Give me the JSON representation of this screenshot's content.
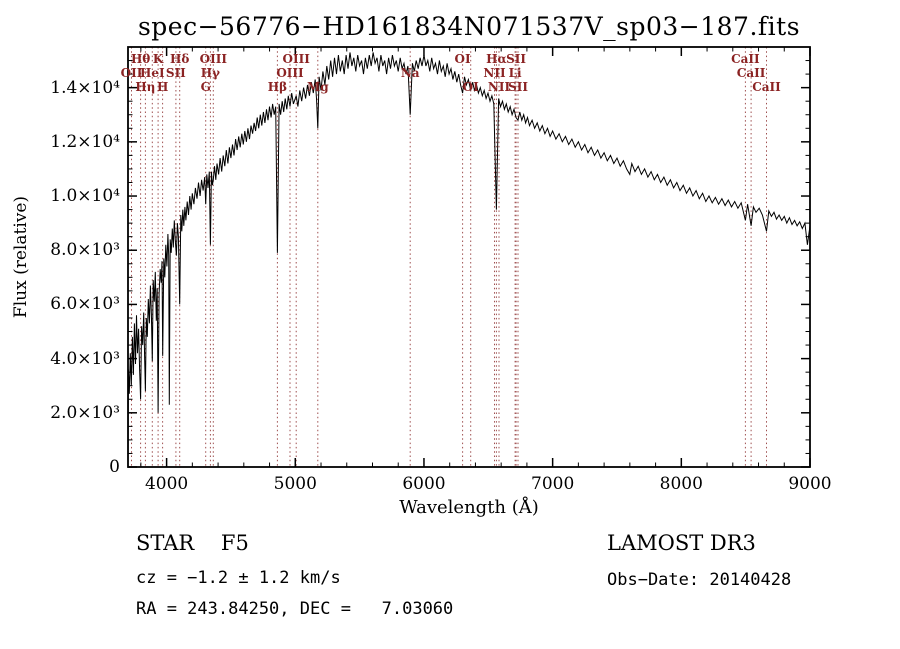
{
  "title": "spec−56776−HD161834N071537V_sp03−187.fits",
  "annotations": {
    "class_label": "STAR    F5",
    "cz": "cz = −1.2 ± 1.2 km/s",
    "radec": "RA = 243.84250, DEC =   7.03060",
    "survey": "LAMOST DR3",
    "obs_date": "Obs−Date: 20140428"
  },
  "chart_data": {
    "type": "line",
    "title": "spec−56776−HD161834N071537V_sp03−187.fits",
    "xlabel": "Wavelength (Å)",
    "ylabel": "Flux (relative)",
    "xlim": [
      3700,
      9000
    ],
    "ylim": [
      0,
      15500
    ],
    "grid": false,
    "legend": "none",
    "line_color": "#000000",
    "marker_color": "#9e4f4f",
    "label_color": "#8b2323",
    "xticks": [
      4000,
      5000,
      6000,
      7000,
      8000,
      9000
    ],
    "xtick_labels": [
      "4000",
      "5000",
      "6000",
      "7000",
      "8000",
      "9000"
    ],
    "yticks": [
      0,
      2000,
      4000,
      6000,
      8000,
      10000,
      12000,
      14000
    ],
    "ytick_labels": [
      "0",
      "2.0×10³",
      "4.0×10³",
      "6.0×10³",
      "8.0×10³",
      "1.0×10⁴",
      "1.2×10⁴",
      "1.4×10⁴"
    ],
    "spectral_lines": [
      {
        "label": "Hθ",
        "wl": 3798,
        "row": 1
      },
      {
        "label": "K",
        "wl": 3934,
        "row": 1
      },
      {
        "label": "Hδ",
        "wl": 4102,
        "row": 1
      },
      {
        "label": "OIII",
        "wl": 4363,
        "row": 1
      },
      {
        "label": "OIII",
        "wl": 5007,
        "row": 1
      },
      {
        "label": "OI",
        "wl": 6300,
        "row": 1
      },
      {
        "label": "Hα",
        "wl": 6563,
        "row": 1
      },
      {
        "label": "SII",
        "wl": 6716,
        "row": 1
      },
      {
        "label": "CaII",
        "wl": 8498,
        "row": 1
      },
      {
        "label": "OII",
        "wl": 3727,
        "row": 2
      },
      {
        "label": "HeI",
        "wl": 3889,
        "row": 2
      },
      {
        "label": "SII",
        "wl": 4072,
        "row": 2
      },
      {
        "label": "Hγ",
        "wl": 4340,
        "row": 2
      },
      {
        "label": "OIII",
        "wl": 4959,
        "row": 2
      },
      {
        "label": "Na",
        "wl": 5893,
        "row": 2
      },
      {
        "label": "NII",
        "wl": 6548,
        "row": 2
      },
      {
        "label": "Li",
        "wl": 6708,
        "row": 2
      },
      {
        "label": "CaII",
        "wl": 8542,
        "row": 2
      },
      {
        "label": "Hη",
        "wl": 3835,
        "row": 3
      },
      {
        "label": "H",
        "wl": 3969,
        "row": 3
      },
      {
        "label": "G",
        "wl": 4304,
        "row": 3
      },
      {
        "label": "Hβ",
        "wl": 4861,
        "row": 3
      },
      {
        "label": "Mg",
        "wl": 5175,
        "row": 3
      },
      {
        "label": "OI",
        "wl": 6363,
        "row": 3
      },
      {
        "label": "NII",
        "wl": 6583,
        "row": 3
      },
      {
        "label": "SII",
        "wl": 6731,
        "row": 3
      },
      {
        "label": "CaII",
        "wl": 8662,
        "row": 3
      }
    ],
    "points": [
      [
        3700,
        100
      ],
      [
        3703,
        3600
      ],
      [
        3710,
        2700
      ],
      [
        3718,
        4200
      ],
      [
        3726,
        3000
      ],
      [
        3734,
        4800
      ],
      [
        3742,
        3400
      ],
      [
        3750,
        5300
      ],
      [
        3758,
        3800
      ],
      [
        3766,
        5600
      ],
      [
        3774,
        4200
      ],
      [
        3782,
        5100
      ],
      [
        3790,
        3600
      ],
      [
        3798,
        2500
      ],
      [
        3806,
        5200
      ],
      [
        3814,
        4500
      ],
      [
        3822,
        5700
      ],
      [
        3830,
        3900
      ],
      [
        3835,
        2800
      ],
      [
        3842,
        5500
      ],
      [
        3850,
        4800
      ],
      [
        3858,
        6200
      ],
      [
        3866,
        5300
      ],
      [
        3874,
        6700
      ],
      [
        3882,
        5600
      ],
      [
        3889,
        3900
      ],
      [
        3896,
        6900
      ],
      [
        3904,
        6100
      ],
      [
        3912,
        7200
      ],
      [
        3920,
        5400
      ],
      [
        3927,
        6600
      ],
      [
        3934,
        2000
      ],
      [
        3942,
        6400
      ],
      [
        3950,
        7300
      ],
      [
        3958,
        6800
      ],
      [
        3964,
        7600
      ],
      [
        3970,
        4100
      ],
      [
        3978,
        7700
      ],
      [
        3986,
        7000
      ],
      [
        3994,
        8200
      ],
      [
        4002,
        7400
      ],
      [
        4010,
        8600
      ],
      [
        4016,
        7800
      ],
      [
        4021,
        2300
      ],
      [
        4028,
        8400
      ],
      [
        4036,
        7900
      ],
      [
        4044,
        8800
      ],
      [
        4052,
        8100
      ],
      [
        4060,
        9100
      ],
      [
        4068,
        8300
      ],
      [
        4076,
        7800
      ],
      [
        4084,
        9000
      ],
      [
        4092,
        8500
      ],
      [
        4102,
        6000
      ],
      [
        4110,
        9300
      ],
      [
        4118,
        8700
      ],
      [
        4126,
        9500
      ],
      [
        4134,
        8900
      ],
      [
        4142,
        9600
      ],
      [
        4150,
        9100
      ],
      [
        4160,
        9800
      ],
      [
        4170,
        9300
      ],
      [
        4180,
        10000
      ],
      [
        4190,
        9500
      ],
      [
        4200,
        10100
      ],
      [
        4212,
        9700
      ],
      [
        4224,
        10300
      ],
      [
        4236,
        9900
      ],
      [
        4248,
        10500
      ],
      [
        4260,
        10000
      ],
      [
        4272,
        10600
      ],
      [
        4284,
        10200
      ],
      [
        4296,
        10700
      ],
      [
        4304,
        9700
      ],
      [
        4312,
        10800
      ],
      [
        4322,
        10300
      ],
      [
        4332,
        10900
      ],
      [
        4340,
        8200
      ],
      [
        4348,
        10900
      ],
      [
        4356,
        10400
      ],
      [
        4363,
        10600
      ],
      [
        4372,
        11100
      ],
      [
        4382,
        10600
      ],
      [
        4392,
        11200
      ],
      [
        4404,
        10800
      ],
      [
        4416,
        11400
      ],
      [
        4428,
        10900
      ],
      [
        4440,
        11500
      ],
      [
        4452,
        11100
      ],
      [
        4464,
        11700
      ],
      [
        4476,
        11200
      ],
      [
        4488,
        11800
      ],
      [
        4500,
        11400
      ],
      [
        4512,
        11900
      ],
      [
        4524,
        11500
      ],
      [
        4536,
        12100
      ],
      [
        4548,
        11700
      ],
      [
        4560,
        12200
      ],
      [
        4572,
        11800
      ],
      [
        4584,
        12300
      ],
      [
        4596,
        11900
      ],
      [
        4608,
        12400
      ],
      [
        4620,
        12000
      ],
      [
        4632,
        12500
      ],
      [
        4644,
        12100
      ],
      [
        4656,
        12600
      ],
      [
        4668,
        12300
      ],
      [
        4680,
        12700
      ],
      [
        4692,
        12400
      ],
      [
        4704,
        12900
      ],
      [
        4716,
        12500
      ],
      [
        4728,
        13000
      ],
      [
        4740,
        12600
      ],
      [
        4752,
        13100
      ],
      [
        4764,
        12700
      ],
      [
        4776,
        13200
      ],
      [
        4788,
        12800
      ],
      [
        4800,
        13300
      ],
      [
        4812,
        12900
      ],
      [
        4824,
        13400
      ],
      [
        4836,
        13000
      ],
      [
        4848,
        13300
      ],
      [
        4861,
        7900
      ],
      [
        4874,
        13400
      ],
      [
        4886,
        13000
      ],
      [
        4898,
        13500
      ],
      [
        4910,
        13100
      ],
      [
        4922,
        13600
      ],
      [
        4934,
        13200
      ],
      [
        4946,
        13700
      ],
      [
        4959,
        13300
      ],
      [
        4972,
        13800
      ],
      [
        4985,
        13400
      ],
      [
        5007,
        13700
      ],
      [
        5020,
        13300
      ],
      [
        5035,
        13900
      ],
      [
        5050,
        13500
      ],
      [
        5065,
        14000
      ],
      [
        5080,
        13600
      ],
      [
        5095,
        14100
      ],
      [
        5110,
        13700
      ],
      [
        5125,
        14200
      ],
      [
        5140,
        13800
      ],
      [
        5155,
        14300
      ],
      [
        5165,
        13600
      ],
      [
        5175,
        12500
      ],
      [
        5185,
        14400
      ],
      [
        5200,
        13900
      ],
      [
        5215,
        14600
      ],
      [
        5230,
        14100
      ],
      [
        5245,
        14800
      ],
      [
        5260,
        14300
      ],
      [
        5275,
        15000
      ],
      [
        5290,
        14400
      ],
      [
        5305,
        15100
      ],
      [
        5320,
        14500
      ],
      [
        5335,
        15200
      ],
      [
        5350,
        14600
      ],
      [
        5365,
        15000
      ],
      [
        5380,
        14500
      ],
      [
        5395,
        15200
      ],
      [
        5410,
        14700
      ],
      [
        5425,
        15300
      ],
      [
        5440,
        14800
      ],
      [
        5455,
        15100
      ],
      [
        5470,
        14600
      ],
      [
        5485,
        15200
      ],
      [
        5500,
        14800
      ],
      [
        5515,
        15000
      ],
      [
        5530,
        14500
      ],
      [
        5545,
        15100
      ],
      [
        5560,
        14700
      ],
      [
        5575,
        15200
      ],
      [
        5590,
        14800
      ],
      [
        5605,
        15300
      ],
      [
        5620,
        14900
      ],
      [
        5635,
        15100
      ],
      [
        5650,
        14600
      ],
      [
        5665,
        15200
      ],
      [
        5680,
        14800
      ],
      [
        5695,
        15000
      ],
      [
        5710,
        14500
      ],
      [
        5725,
        15100
      ],
      [
        5740,
        14700
      ],
      [
        5755,
        15200
      ],
      [
        5770,
        14800
      ],
      [
        5785,
        15000
      ],
      [
        5800,
        14600
      ],
      [
        5815,
        15100
      ],
      [
        5830,
        14700
      ],
      [
        5845,
        14900
      ],
      [
        5860,
        14500
      ],
      [
        5875,
        14800
      ],
      [
        5893,
        13000
      ],
      [
        5910,
        14900
      ],
      [
        5925,
        14600
      ],
      [
        5940,
        15000
      ],
      [
        5955,
        14700
      ],
      [
        5970,
        15100
      ],
      [
        5985,
        14800
      ],
      [
        6000,
        15200
      ],
      [
        6015,
        14800
      ],
      [
        6030,
        15000
      ],
      [
        6045,
        14600
      ],
      [
        6060,
        15100
      ],
      [
        6075,
        14700
      ],
      [
        6090,
        14900
      ],
      [
        6105,
        14500
      ],
      [
        6120,
        15000
      ],
      [
        6135,
        14600
      ],
      [
        6150,
        14800
      ],
      [
        6165,
        14400
      ],
      [
        6180,
        14900
      ],
      [
        6195,
        14500
      ],
      [
        6210,
        14700
      ],
      [
        6225,
        14300
      ],
      [
        6240,
        14600
      ],
      [
        6255,
        14200
      ],
      [
        6270,
        14500
      ],
      [
        6285,
        14100
      ],
      [
        6300,
        13800
      ],
      [
        6315,
        14400
      ],
      [
        6330,
        14100
      ],
      [
        6345,
        14300
      ],
      [
        6363,
        13900
      ],
      [
        6378,
        14200
      ],
      [
        6393,
        13900
      ],
      [
        6408,
        14100
      ],
      [
        6423,
        13800
      ],
      [
        6438,
        14000
      ],
      [
        6453,
        13700
      ],
      [
        6468,
        13900
      ],
      [
        6483,
        13600
      ],
      [
        6498,
        13800
      ],
      [
        6513,
        13500
      ],
      [
        6528,
        13700
      ],
      [
        6543,
        13400
      ],
      [
        6563,
        9500
      ],
      [
        6580,
        13600
      ],
      [
        6595,
        13300
      ],
      [
        6610,
        13500
      ],
      [
        6625,
        13200
      ],
      [
        6640,
        13400
      ],
      [
        6655,
        13100
      ],
      [
        6670,
        13300
      ],
      [
        6685,
        13000
      ],
      [
        6700,
        13200
      ],
      [
        6715,
        12900
      ],
      [
        6731,
        12800
      ],
      [
        6745,
        13100
      ],
      [
        6760,
        12800
      ],
      [
        6775,
        13000
      ],
      [
        6790,
        12700
      ],
      [
        6805,
        12900
      ],
      [
        6820,
        12600
      ],
      [
        6840,
        12800
      ],
      [
        6860,
        12500
      ],
      [
        6880,
        12700
      ],
      [
        6900,
        12400
      ],
      [
        6920,
        12600
      ],
      [
        6940,
        12300
      ],
      [
        6960,
        12500
      ],
      [
        6980,
        12200
      ],
      [
        7000,
        12400
      ],
      [
        7025,
        12100
      ],
      [
        7050,
        12300
      ],
      [
        7075,
        12000
      ],
      [
        7100,
        12200
      ],
      [
        7125,
        11900
      ],
      [
        7150,
        12100
      ],
      [
        7175,
        11800
      ],
      [
        7200,
        12000
      ],
      [
        7225,
        11700
      ],
      [
        7250,
        11900
      ],
      [
        7275,
        11600
      ],
      [
        7300,
        11800
      ],
      [
        7325,
        11500
      ],
      [
        7350,
        11700
      ],
      [
        7375,
        11400
      ],
      [
        7400,
        11600
      ],
      [
        7425,
        11300
      ],
      [
        7450,
        11500
      ],
      [
        7475,
        11200
      ],
      [
        7500,
        11400
      ],
      [
        7525,
        11100
      ],
      [
        7550,
        11300
      ],
      [
        7575,
        11000
      ],
      [
        7600,
        10800
      ],
      [
        7615,
        11200
      ],
      [
        7640,
        10900
      ],
      [
        7665,
        11100
      ],
      [
        7690,
        10800
      ],
      [
        7715,
        11000
      ],
      [
        7740,
        10700
      ],
      [
        7765,
        10900
      ],
      [
        7790,
        10600
      ],
      [
        7815,
        10800
      ],
      [
        7840,
        10500
      ],
      [
        7865,
        10700
      ],
      [
        7890,
        10400
      ],
      [
        7915,
        10600
      ],
      [
        7940,
        10300
      ],
      [
        7965,
        10500
      ],
      [
        7990,
        10200
      ],
      [
        8015,
        10400
      ],
      [
        8040,
        10100
      ],
      [
        8065,
        10300
      ],
      [
        8090,
        10000
      ],
      [
        8115,
        10200
      ],
      [
        8140,
        9900
      ],
      [
        8165,
        10100
      ],
      [
        8190,
        9800
      ],
      [
        8215,
        10000
      ],
      [
        8240,
        9750
      ],
      [
        8265,
        9950
      ],
      [
        8290,
        9700
      ],
      [
        8315,
        9900
      ],
      [
        8340,
        9650
      ],
      [
        8365,
        9850
      ],
      [
        8390,
        9600
      ],
      [
        8415,
        9800
      ],
      [
        8440,
        9550
      ],
      [
        8465,
        9750
      ],
      [
        8498,
        9100
      ],
      [
        8515,
        9700
      ],
      [
        8542,
        8900
      ],
      [
        8560,
        9600
      ],
      [
        8580,
        9400
      ],
      [
        8605,
        9550
      ],
      [
        8630,
        9300
      ],
      [
        8662,
        8700
      ],
      [
        8680,
        9450
      ],
      [
        8700,
        9250
      ],
      [
        8720,
        9400
      ],
      [
        8740,
        9150
      ],
      [
        8760,
        9300
      ],
      [
        8780,
        9100
      ],
      [
        8800,
        9250
      ],
      [
        8820,
        9000
      ],
      [
        8840,
        9200
      ],
      [
        8860,
        8950
      ],
      [
        8880,
        9100
      ],
      [
        8900,
        8900
      ],
      [
        8920,
        9050
      ],
      [
        8940,
        8800
      ],
      [
        8960,
        9000
      ],
      [
        8980,
        8200
      ],
      [
        9000,
        8900
      ]
    ]
  }
}
